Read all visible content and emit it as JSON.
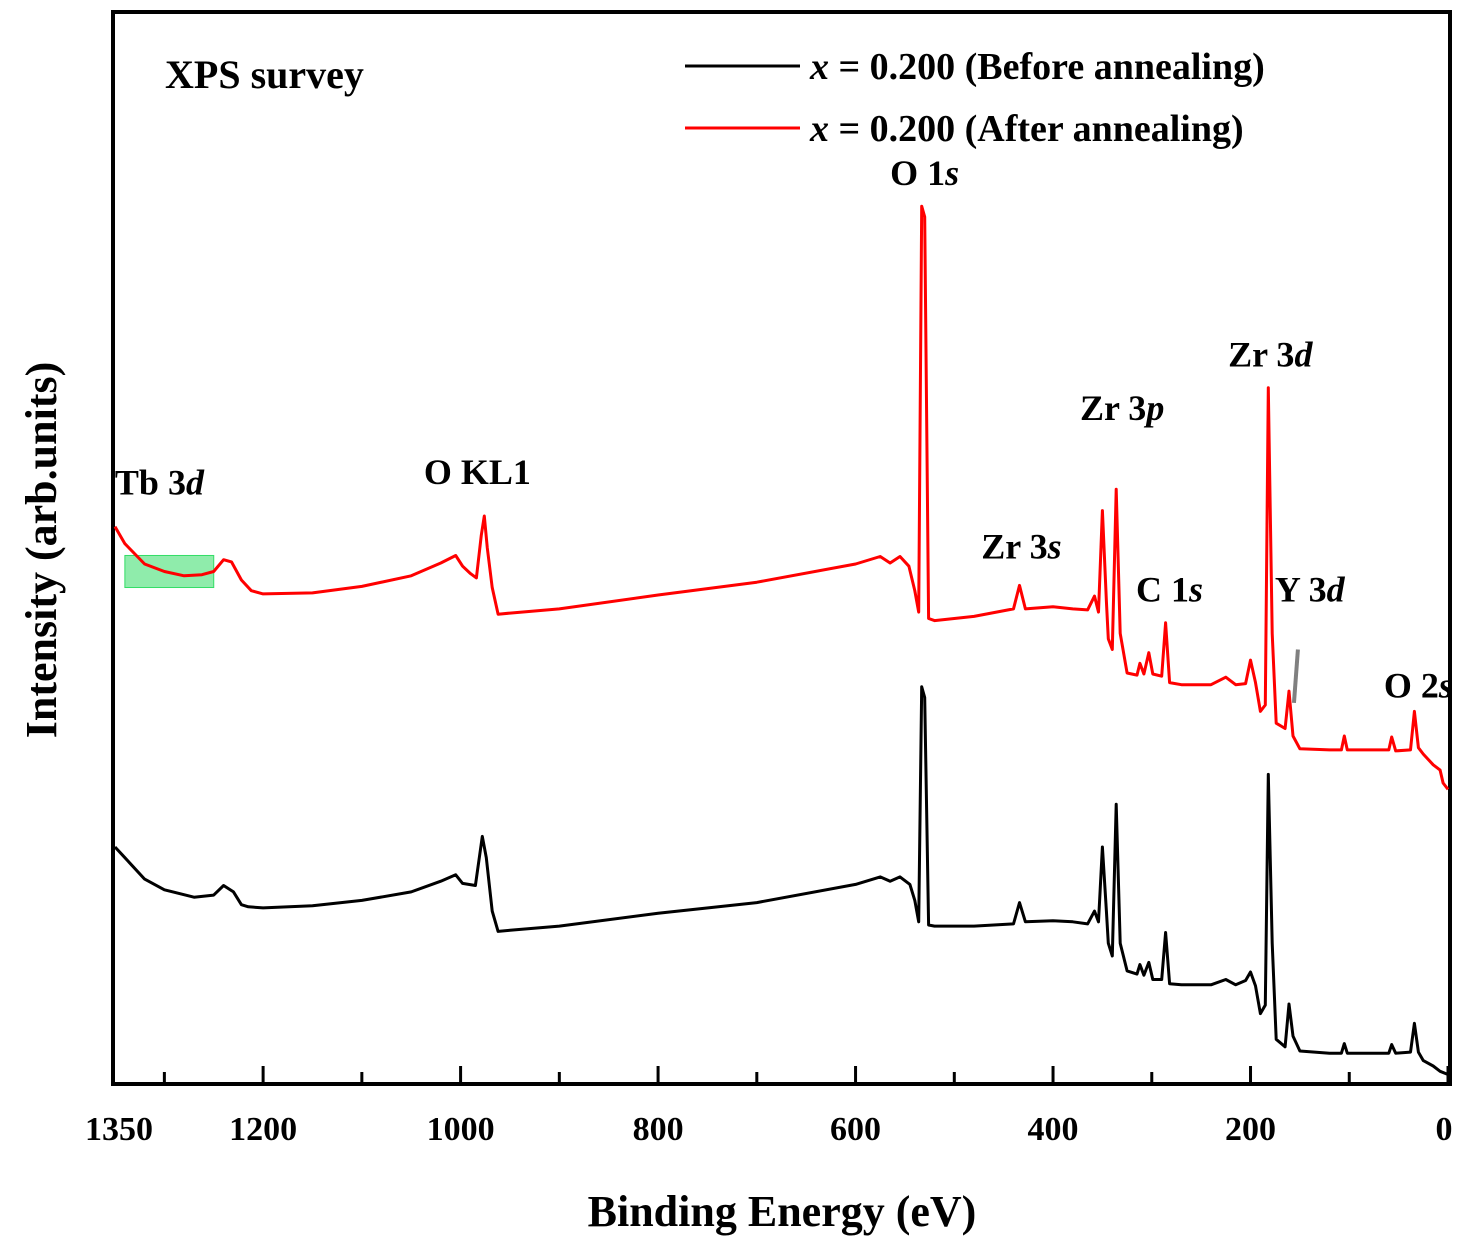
{
  "chart_data": {
    "type": "line",
    "title": "XPS survey",
    "xlabel": "Binding Energy (eV)",
    "ylabel": "Intensity (arb.units)",
    "xlim": [
      1350,
      0
    ],
    "ylim": [
      0,
      100
    ],
    "x_ticks": [
      1350,
      1200,
      1000,
      800,
      600,
      400,
      200,
      0
    ],
    "legend_position": "top-right",
    "colors": {
      "before": "#000000",
      "after": "#ff0000",
      "highlight": "#33dd66",
      "tb_label": "#1a9e2a",
      "y3d_pointer": "#808080"
    },
    "series": [
      {
        "name_prefix": "x",
        "name_suffix": " = 0.200 (Before annealing)",
        "color": "#000000",
        "points": [
          [
            1350,
            22
          ],
          [
            1340,
            21
          ],
          [
            1320,
            19
          ],
          [
            1300,
            18
          ],
          [
            1270,
            17.3
          ],
          [
            1250,
            17.5
          ],
          [
            1240,
            18.4
          ],
          [
            1230,
            17.8
          ],
          [
            1222,
            16.6
          ],
          [
            1215,
            16.4
          ],
          [
            1200,
            16.3
          ],
          [
            1150,
            16.5
          ],
          [
            1100,
            17
          ],
          [
            1050,
            17.8
          ],
          [
            1020,
            18.8
          ],
          [
            1005,
            19.4
          ],
          [
            998,
            18.6
          ],
          [
            985,
            18.4
          ],
          [
            978,
            23
          ],
          [
            974,
            21
          ],
          [
            968,
            16
          ],
          [
            962,
            14.1
          ],
          [
            950,
            14.2
          ],
          [
            900,
            14.6
          ],
          [
            800,
            15.8
          ],
          [
            700,
            16.8
          ],
          [
            600,
            18.5
          ],
          [
            575,
            19.2
          ],
          [
            565,
            18.8
          ],
          [
            555,
            19.2
          ],
          [
            545,
            18.5
          ],
          [
            540,
            17
          ],
          [
            536,
            15
          ],
          [
            533,
            37
          ],
          [
            530,
            36
          ],
          [
            526,
            14.7
          ],
          [
            520,
            14.6
          ],
          [
            480,
            14.6
          ],
          [
            440,
            14.8
          ],
          [
            434,
            16.8
          ],
          [
            428,
            15
          ],
          [
            400,
            15.1
          ],
          [
            380,
            15
          ],
          [
            365,
            14.8
          ],
          [
            358,
            16
          ],
          [
            354,
            15
          ],
          [
            350,
            22
          ],
          [
            346,
            16
          ],
          [
            344,
            13
          ],
          [
            340,
            11.8
          ],
          [
            336,
            26
          ],
          [
            332,
            13
          ],
          [
            325,
            10.4
          ],
          [
            315,
            10.1
          ],
          [
            312,
            11
          ],
          [
            308,
            10
          ],
          [
            303,
            11.2
          ],
          [
            299,
            9.6
          ],
          [
            290,
            9.6
          ],
          [
            286,
            14
          ],
          [
            282,
            9.2
          ],
          [
            270,
            9.1
          ],
          [
            240,
            9.1
          ],
          [
            225,
            9.6
          ],
          [
            215,
            9.1
          ],
          [
            205,
            9.5
          ],
          [
            200,
            10.3
          ],
          [
            195,
            9
          ],
          [
            190,
            6.4
          ],
          [
            185,
            7.2
          ],
          [
            182,
            28.8
          ],
          [
            178,
            13
          ],
          [
            174,
            4
          ],
          [
            165,
            3.3
          ],
          [
            161,
            7.3
          ],
          [
            157,
            4.3
          ],
          [
            150,
            2.9
          ],
          [
            120,
            2.7
          ],
          [
            108,
            2.7
          ],
          [
            105,
            3.6
          ],
          [
            102,
            2.7
          ],
          [
            80,
            2.7
          ],
          [
            60,
            2.7
          ],
          [
            57,
            3.5
          ],
          [
            53,
            2.7
          ],
          [
            38,
            2.8
          ],
          [
            34,
            5.5
          ],
          [
            30,
            2.8
          ],
          [
            25,
            2
          ],
          [
            15,
            1.5
          ],
          [
            8,
            1
          ],
          [
            0,
            0.7
          ]
        ]
      },
      {
        "name_prefix": "x",
        "name_suffix": " = 0.200 (After annealing)",
        "color": "#ff0000",
        "points": [
          [
            1350,
            52
          ],
          [
            1340,
            50.4
          ],
          [
            1320,
            48.5
          ],
          [
            1300,
            47.8
          ],
          [
            1280,
            47.4
          ],
          [
            1262,
            47.5
          ],
          [
            1250,
            47.8
          ],
          [
            1240,
            48.9
          ],
          [
            1232,
            48.7
          ],
          [
            1222,
            47
          ],
          [
            1212,
            46
          ],
          [
            1200,
            45.7
          ],
          [
            1150,
            45.8
          ],
          [
            1100,
            46.4
          ],
          [
            1050,
            47.4
          ],
          [
            1020,
            48.6
          ],
          [
            1005,
            49.3
          ],
          [
            998,
            48.3
          ],
          [
            990,
            47.6
          ],
          [
            984,
            47.2
          ],
          [
            979,
            51.2
          ],
          [
            976,
            53
          ],
          [
            973,
            50
          ],
          [
            968,
            46.3
          ],
          [
            962,
            43.8
          ],
          [
            950,
            43.9
          ],
          [
            900,
            44.3
          ],
          [
            800,
            45.6
          ],
          [
            700,
            46.8
          ],
          [
            600,
            48.5
          ],
          [
            575,
            49.2
          ],
          [
            565,
            48.6
          ],
          [
            555,
            49.2
          ],
          [
            546,
            48.3
          ],
          [
            540,
            46
          ],
          [
            536,
            44
          ],
          [
            533,
            82
          ],
          [
            530,
            81
          ],
          [
            526,
            43.4
          ],
          [
            520,
            43.2
          ],
          [
            480,
            43.6
          ],
          [
            440,
            44.3
          ],
          [
            434,
            46.5
          ],
          [
            428,
            44.3
          ],
          [
            400,
            44.5
          ],
          [
            380,
            44.3
          ],
          [
            365,
            44.2
          ],
          [
            358,
            45.5
          ],
          [
            354,
            44
          ],
          [
            350,
            53.5
          ],
          [
            346,
            45
          ],
          [
            344,
            41.5
          ],
          [
            340,
            40.5
          ],
          [
            336,
            55.5
          ],
          [
            332,
            42
          ],
          [
            325,
            38.3
          ],
          [
            315,
            38.1
          ],
          [
            312,
            39.2
          ],
          [
            308,
            38.2
          ],
          [
            303,
            40.2
          ],
          [
            299,
            38.2
          ],
          [
            290,
            38
          ],
          [
            286,
            43
          ],
          [
            282,
            37.4
          ],
          [
            270,
            37.2
          ],
          [
            240,
            37.2
          ],
          [
            225,
            37.9
          ],
          [
            215,
            37.2
          ],
          [
            205,
            37.3
          ],
          [
            200,
            39.5
          ],
          [
            195,
            37.4
          ],
          [
            190,
            34.7
          ],
          [
            185,
            35.3
          ],
          [
            182,
            65
          ],
          [
            178,
            42
          ],
          [
            174,
            33.6
          ],
          [
            165,
            33.1
          ],
          [
            161,
            36.6
          ],
          [
            157,
            32.4
          ],
          [
            150,
            31.2
          ],
          [
            120,
            31.1
          ],
          [
            108,
            31.1
          ],
          [
            105,
            32.4
          ],
          [
            102,
            31.1
          ],
          [
            80,
            31.1
          ],
          [
            60,
            31.1
          ],
          [
            57,
            32.3
          ],
          [
            53,
            31
          ],
          [
            38,
            31.1
          ],
          [
            34,
            34.7
          ],
          [
            30,
            31.3
          ],
          [
            25,
            30.7
          ],
          [
            15,
            29.7
          ],
          [
            8,
            29.2
          ],
          [
            5,
            28
          ],
          [
            0,
            27.4
          ]
        ]
      }
    ],
    "annotations": [
      {
        "text": "O 1",
        "italic": "s",
        "x": 530,
        "y": 84
      },
      {
        "text": "Zr 3",
        "italic": "p",
        "x": 330,
        "y": 62
      },
      {
        "text": "Zr 3",
        "italic": "d",
        "x": 180,
        "y": 67
      },
      {
        "text": "O KL1",
        "italic": "",
        "x": 983,
        "y": 56
      },
      {
        "text": "Zr 3",
        "italic": "s",
        "x": 432,
        "y": 49
      },
      {
        "text": "C 1",
        "italic": "s",
        "x": 282,
        "y": 45
      },
      {
        "text": "Y 3",
        "italic": "d",
        "x": 140,
        "y": 45
      },
      {
        "text": "O 2",
        "italic": "s",
        "x": 30,
        "y": 36
      },
      {
        "text": "Tb 3",
        "italic": "d",
        "x": 1305,
        "y": 55,
        "color": "tb_label"
      }
    ],
    "highlight_region": {
      "label": "Tb 3d",
      "x_range": [
        1340,
        1250
      ],
      "y_range": [
        46.3,
        49.3
      ]
    }
  }
}
